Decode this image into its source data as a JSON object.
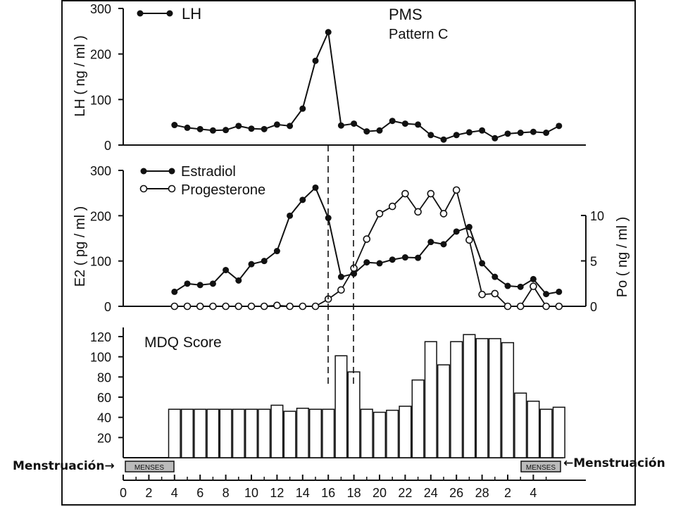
{
  "annotations": {
    "left": "Menstruación→",
    "right": "←Menstruación"
  },
  "colors": {
    "ink": "#111111",
    "paper": "#ffffff",
    "menses_fill": "#bbbbbb"
  },
  "chart_data": [
    {
      "type": "line",
      "title": "PMS",
      "subtitle": "Pattern C",
      "ylabel": "LH ( ng / ml )",
      "ylim": [
        0,
        300
      ],
      "yticks": [
        0,
        100,
        200,
        300
      ],
      "series": [
        {
          "name": "LH",
          "marker": "filled",
          "x": [
            4,
            5,
            6,
            7,
            8,
            9,
            10,
            11,
            12,
            13,
            14,
            15,
            16,
            17,
            18,
            19,
            20,
            21,
            22,
            23,
            24,
            25,
            26,
            27,
            28,
            29,
            30,
            31,
            32,
            33,
            34
          ],
          "values": [
            44,
            38,
            35,
            32,
            33,
            42,
            36,
            35,
            45,
            42,
            80,
            185,
            248,
            43,
            47,
            30,
            32,
            53,
            47,
            45,
            22,
            12,
            22,
            28,
            32,
            15,
            25,
            27,
            29,
            27,
            42
          ]
        }
      ]
    },
    {
      "type": "line",
      "ylabel": "E2 ( pg / ml )",
      "ylabel_right": "Po ( ng / ml )",
      "ylim": [
        0,
        300
      ],
      "ylim_right": [
        0,
        15
      ],
      "yticks": [
        0,
        100,
        200,
        300
      ],
      "yticks_right": [
        0,
        5,
        10
      ],
      "series": [
        {
          "name": "Estradiol",
          "marker": "filled",
          "axis": "left",
          "x": [
            4,
            5,
            6,
            7,
            8,
            9,
            10,
            11,
            12,
            13,
            14,
            15,
            16,
            17,
            18,
            19,
            20,
            21,
            22,
            23,
            24,
            25,
            26,
            27,
            28,
            29,
            30,
            31,
            32,
            33,
            34
          ],
          "values": [
            32,
            50,
            47,
            50,
            80,
            57,
            93,
            100,
            122,
            200,
            235,
            262,
            195,
            65,
            72,
            97,
            95,
            103,
            108,
            107,
            142,
            137,
            165,
            175,
            95,
            65,
            45,
            43,
            60,
            27,
            32
          ]
        },
        {
          "name": "Progesterone",
          "marker": "open",
          "axis": "right",
          "x": [
            4,
            5,
            6,
            7,
            8,
            9,
            10,
            11,
            12,
            13,
            14,
            15,
            16,
            17,
            18,
            19,
            20,
            21,
            22,
            23,
            24,
            25,
            26,
            27,
            28,
            29,
            30,
            31,
            32,
            33,
            34
          ],
          "values": [
            0,
            0,
            0,
            0,
            0,
            0,
            0,
            0,
            0.1,
            0,
            0,
            0,
            0.8,
            1.8,
            4.2,
            7.4,
            10.2,
            11,
            12.4,
            10.4,
            12.4,
            10.2,
            12.8,
            7.3,
            1.3,
            1.4,
            0,
            0,
            2.2,
            0,
            0
          ]
        }
      ]
    },
    {
      "type": "bar",
      "title": "MDQ Score",
      "ylim": [
        0,
        120
      ],
      "yticks": [
        20,
        40,
        60,
        80,
        100,
        120
      ],
      "x": [
        4,
        5,
        6,
        7,
        8,
        9,
        10,
        11,
        12,
        13,
        14,
        15,
        16,
        17,
        18,
        19,
        20,
        21,
        22,
        23,
        24,
        25,
        26,
        27,
        28,
        29,
        30,
        31,
        32,
        33,
        34
      ],
      "values": [
        48,
        48,
        48,
        48,
        48,
        48,
        48,
        48,
        52,
        46,
        49,
        48,
        48,
        101,
        85,
        48,
        45,
        47,
        51,
        77,
        115,
        92,
        115,
        122,
        118,
        118,
        114,
        64,
        56,
        48,
        50
      ],
      "xticklabels": [
        "0",
        "2",
        "4",
        "6",
        "8",
        "10",
        "12",
        "14",
        "16",
        "18",
        "20",
        "22",
        "24",
        "26",
        "28",
        "2",
        "4"
      ],
      "menses_label": "MENSES"
    }
  ]
}
